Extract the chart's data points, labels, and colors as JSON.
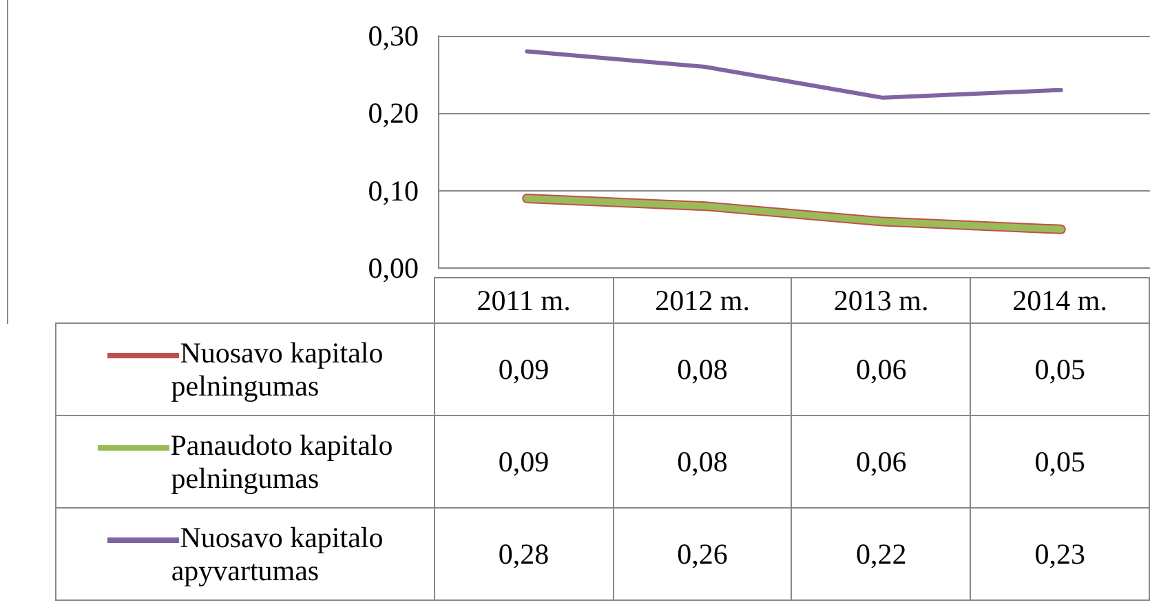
{
  "chart_data": {
    "type": "line",
    "categories": [
      "2011 m.",
      "2012 m.",
      "2013 m.",
      "2014 m."
    ],
    "series": [
      {
        "name": "Nuosavo kapitalo pelningumas",
        "color": "#c0504d",
        "values": [
          0.09,
          0.08,
          0.06,
          0.05
        ],
        "value_labels": [
          "0,09",
          "0,08",
          "0,06",
          "0,05"
        ]
      },
      {
        "name": "Panaudoto kapitalo pelningumas",
        "color": "#9bbb59",
        "values": [
          0.09,
          0.08,
          0.06,
          0.05
        ],
        "value_labels": [
          "0,09",
          "0,08",
          "0,06",
          "0,05"
        ]
      },
      {
        "name": "Nuosavo kapitalo apyvartumas",
        "color": "#8064a2",
        "values": [
          0.28,
          0.26,
          0.22,
          0.23
        ],
        "value_labels": [
          "0,28",
          "0,26",
          "0,22",
          "0,23"
        ]
      }
    ],
    "ylim": [
      0,
      0.3
    ],
    "yticks": [
      {
        "value": 0,
        "label": "0,00"
      },
      {
        "value": 0.1,
        "label": "0,10"
      },
      {
        "value": 0.2,
        "label": "0,20"
      },
      {
        "value": 0.3,
        "label": "0,30"
      }
    ],
    "grid": "y",
    "legend": "bottom left",
    "marker": "none",
    "line_style": "solid"
  }
}
